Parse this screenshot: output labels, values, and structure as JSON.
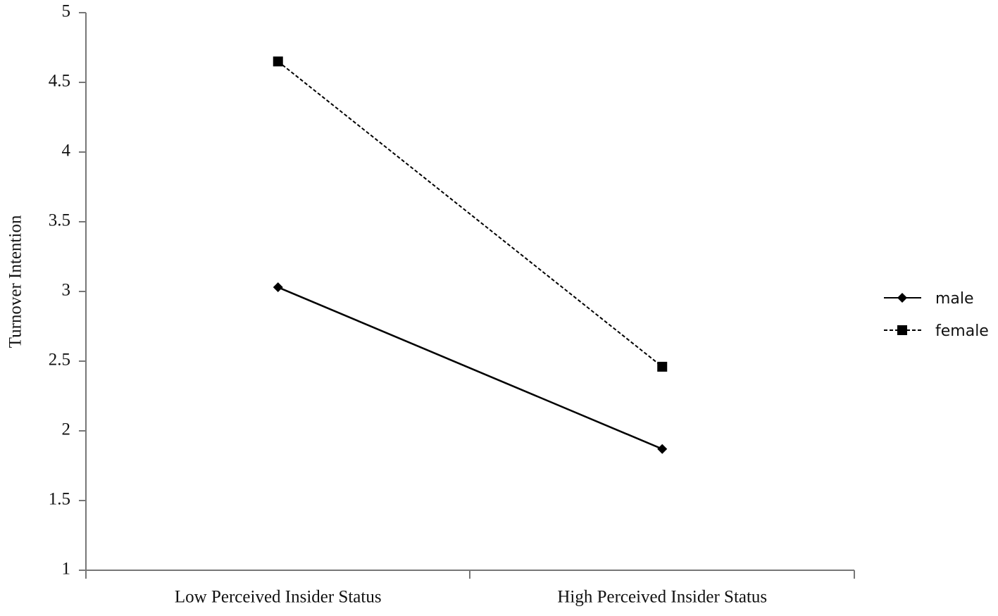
{
  "chart_data": {
    "type": "line",
    "y_label": "Turnover Intention",
    "categories": [
      "Low Perceived Insider Status",
      "High Perceived Insider Status"
    ],
    "series": [
      {
        "name": "male",
        "color": "#000000",
        "values": [
          3.03,
          1.87
        ],
        "marker": "diamond",
        "dashed": false
      },
      {
        "name": "female",
        "color": "#000000",
        "values": [
          4.65,
          2.46
        ],
        "marker": "square",
        "dashed": true
      }
    ],
    "ylim": [
      1,
      5
    ],
    "yticks": [
      1,
      1.5,
      2,
      2.5,
      3,
      3.5,
      4,
      4.5,
      5
    ],
    "grid": false,
    "legend": "right"
  }
}
